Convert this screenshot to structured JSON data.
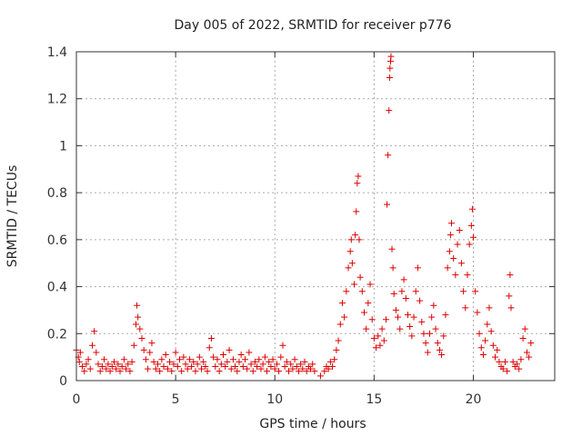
{
  "chart_data": {
    "type": "scatter",
    "title": "Day 005 of 2022, SRMTID for receiver p776",
    "xlabel": "GPS time / hours",
    "ylabel": "SRMTID / TECUs",
    "xlim": [
      0,
      24.1
    ],
    "ylim": [
      0,
      1.4
    ],
    "xticks": [
      0,
      5,
      10,
      15,
      20
    ],
    "xtick_labels": [
      "0",
      "5",
      "10",
      "15",
      "20"
    ],
    "yticks": [
      0,
      0.2,
      0.4,
      0.6,
      0.8,
      1,
      1.2,
      1.4
    ],
    "ytick_labels": [
      "0",
      "0.2",
      "0.4",
      "0.6",
      "0.8",
      "1",
      "1.2",
      "1.4"
    ],
    "grid": true,
    "marker": "+",
    "marker_color": "#dd0000",
    "series": [
      {
        "name": "SRMTID",
        "points": [
          [
            0.0,
            0.13
          ],
          [
            0.1,
            0.1
          ],
          [
            0.15,
            0.08
          ],
          [
            0.2,
            0.12
          ],
          [
            0.3,
            0.06
          ],
          [
            0.4,
            0.04
          ],
          [
            0.5,
            0.07
          ],
          [
            0.6,
            0.09
          ],
          [
            0.7,
            0.05
          ],
          [
            0.8,
            0.15
          ],
          [
            0.9,
            0.21
          ],
          [
            1.0,
            0.12
          ],
          [
            1.1,
            0.07
          ],
          [
            1.2,
            0.04
          ],
          [
            1.3,
            0.06
          ],
          [
            1.4,
            0.09
          ],
          [
            1.5,
            0.05
          ],
          [
            1.6,
            0.07
          ],
          [
            1.7,
            0.04
          ],
          [
            1.8,
            0.06
          ],
          [
            1.9,
            0.08
          ],
          [
            2.0,
            0.05
          ],
          [
            2.1,
            0.07
          ],
          [
            2.2,
            0.04
          ],
          [
            2.3,
            0.06
          ],
          [
            2.4,
            0.09
          ],
          [
            2.5,
            0.05
          ],
          [
            2.6,
            0.07
          ],
          [
            2.7,
            0.04
          ],
          [
            2.8,
            0.08
          ],
          [
            2.9,
            0.15
          ],
          [
            3.0,
            0.24
          ],
          [
            3.05,
            0.32
          ],
          [
            3.1,
            0.27
          ],
          [
            3.2,
            0.22
          ],
          [
            3.3,
            0.18
          ],
          [
            3.4,
            0.13
          ],
          [
            3.5,
            0.09
          ],
          [
            3.6,
            0.05
          ],
          [
            3.7,
            0.12
          ],
          [
            3.8,
            0.16
          ],
          [
            3.9,
            0.08
          ],
          [
            4.0,
            0.05
          ],
          [
            4.1,
            0.07
          ],
          [
            4.2,
            0.04
          ],
          [
            4.3,
            0.09
          ],
          [
            4.4,
            0.06
          ],
          [
            4.5,
            0.11
          ],
          [
            4.6,
            0.05
          ],
          [
            4.7,
            0.08
          ],
          [
            4.8,
            0.04
          ],
          [
            4.9,
            0.07
          ],
          [
            5.0,
            0.12
          ],
          [
            5.1,
            0.06
          ],
          [
            5.2,
            0.09
          ],
          [
            5.3,
            0.04
          ],
          [
            5.4,
            0.1
          ],
          [
            5.5,
            0.07
          ],
          [
            5.6,
            0.05
          ],
          [
            5.7,
            0.09
          ],
          [
            5.8,
            0.06
          ],
          [
            5.9,
            0.08
          ],
          [
            6.0,
            0.04
          ],
          [
            6.1,
            0.07
          ],
          [
            6.2,
            0.1
          ],
          [
            6.3,
            0.05
          ],
          [
            6.4,
            0.08
          ],
          [
            6.5,
            0.06
          ],
          [
            6.6,
            0.04
          ],
          [
            6.7,
            0.14
          ],
          [
            6.8,
            0.18
          ],
          [
            6.9,
            0.1
          ],
          [
            7.0,
            0.06
          ],
          [
            7.1,
            0.09
          ],
          [
            7.2,
            0.04
          ],
          [
            7.3,
            0.07
          ],
          [
            7.4,
            0.11
          ],
          [
            7.5,
            0.06
          ],
          [
            7.6,
            0.08
          ],
          [
            7.7,
            0.13
          ],
          [
            7.8,
            0.05
          ],
          [
            7.9,
            0.09
          ],
          [
            8.0,
            0.06
          ],
          [
            8.1,
            0.04
          ],
          [
            8.2,
            0.08
          ],
          [
            8.3,
            0.11
          ],
          [
            8.4,
            0.06
          ],
          [
            8.5,
            0.09
          ],
          [
            8.6,
            0.05
          ],
          [
            8.7,
            0.12
          ],
          [
            8.8,
            0.07
          ],
          [
            8.9,
            0.04
          ],
          [
            9.0,
            0.08
          ],
          [
            9.1,
            0.06
          ],
          [
            9.2,
            0.09
          ],
          [
            9.3,
            0.05
          ],
          [
            9.4,
            0.07
          ],
          [
            9.5,
            0.1
          ],
          [
            9.6,
            0.04
          ],
          [
            9.7,
            0.08
          ],
          [
            9.8,
            0.06
          ],
          [
            9.9,
            0.09
          ],
          [
            10.0,
            0.05
          ],
          [
            10.1,
            0.07
          ],
          [
            10.2,
            0.04
          ],
          [
            10.3,
            0.1
          ],
          [
            10.4,
            0.15
          ],
          [
            10.5,
            0.06
          ],
          [
            10.6,
            0.08
          ],
          [
            10.7,
            0.04
          ],
          [
            10.8,
            0.07
          ],
          [
            10.9,
            0.05
          ],
          [
            11.0,
            0.09
          ],
          [
            11.1,
            0.06
          ],
          [
            11.2,
            0.04
          ],
          [
            11.3,
            0.07
          ],
          [
            11.4,
            0.05
          ],
          [
            11.5,
            0.08
          ],
          [
            11.6,
            0.04
          ],
          [
            11.7,
            0.06
          ],
          [
            11.8,
            0.05
          ],
          [
            11.9,
            0.07
          ],
          [
            12.0,
            0.04
          ],
          [
            12.3,
            0.02
          ],
          [
            12.5,
            0.04
          ],
          [
            12.6,
            0.06
          ],
          [
            12.7,
            0.05
          ],
          [
            12.8,
            0.08
          ],
          [
            12.9,
            0.06
          ],
          [
            13.0,
            0.09
          ],
          [
            13.1,
            0.13
          ],
          [
            13.2,
            0.17
          ],
          [
            13.3,
            0.24
          ],
          [
            13.4,
            0.33
          ],
          [
            13.5,
            0.27
          ],
          [
            13.6,
            0.38
          ],
          [
            13.7,
            0.48
          ],
          [
            13.8,
            0.55
          ],
          [
            13.85,
            0.6
          ],
          [
            13.9,
            0.5
          ],
          [
            14.0,
            0.41
          ],
          [
            14.05,
            0.62
          ],
          [
            14.1,
            0.72
          ],
          [
            14.15,
            0.84
          ],
          [
            14.2,
            0.87
          ],
          [
            14.25,
            0.6
          ],
          [
            14.3,
            0.44
          ],
          [
            14.4,
            0.38
          ],
          [
            14.5,
            0.29
          ],
          [
            14.6,
            0.22
          ],
          [
            14.7,
            0.33
          ],
          [
            14.8,
            0.41
          ],
          [
            14.9,
            0.26
          ],
          [
            15.0,
            0.18
          ],
          [
            15.1,
            0.14
          ],
          [
            15.2,
            0.19
          ],
          [
            15.3,
            0.15
          ],
          [
            15.4,
            0.22
          ],
          [
            15.5,
            0.17
          ],
          [
            15.6,
            0.26
          ],
          [
            15.65,
            0.75
          ],
          [
            15.7,
            0.96
          ],
          [
            15.75,
            1.15
          ],
          [
            15.78,
            1.29
          ],
          [
            15.8,
            1.33
          ],
          [
            15.83,
            1.36
          ],
          [
            15.85,
            1.38
          ],
          [
            15.9,
            0.56
          ],
          [
            15.95,
            0.48
          ],
          [
            16.0,
            0.37
          ],
          [
            16.1,
            0.3
          ],
          [
            16.2,
            0.27
          ],
          [
            16.3,
            0.22
          ],
          [
            16.4,
            0.38
          ],
          [
            16.5,
            0.43
          ],
          [
            16.6,
            0.35
          ],
          [
            16.7,
            0.28
          ],
          [
            16.8,
            0.23
          ],
          [
            16.9,
            0.19
          ],
          [
            17.0,
            0.27
          ],
          [
            17.1,
            0.38
          ],
          [
            17.2,
            0.48
          ],
          [
            17.3,
            0.34
          ],
          [
            17.4,
            0.25
          ],
          [
            17.5,
            0.2
          ],
          [
            17.6,
            0.16
          ],
          [
            17.7,
            0.12
          ],
          [
            17.8,
            0.2
          ],
          [
            17.9,
            0.27
          ],
          [
            18.0,
            0.32
          ],
          [
            18.1,
            0.22
          ],
          [
            18.2,
            0.16
          ],
          [
            18.3,
            0.13
          ],
          [
            18.4,
            0.11
          ],
          [
            18.5,
            0.19
          ],
          [
            18.6,
            0.28
          ],
          [
            18.7,
            0.48
          ],
          [
            18.8,
            0.55
          ],
          [
            18.85,
            0.62
          ],
          [
            18.9,
            0.67
          ],
          [
            19.0,
            0.52
          ],
          [
            19.1,
            0.45
          ],
          [
            19.2,
            0.58
          ],
          [
            19.3,
            0.64
          ],
          [
            19.4,
            0.5
          ],
          [
            19.5,
            0.38
          ],
          [
            19.6,
            0.31
          ],
          [
            19.7,
            0.45
          ],
          [
            19.8,
            0.58
          ],
          [
            19.9,
            0.66
          ],
          [
            19.95,
            0.73
          ],
          [
            20.0,
            0.61
          ],
          [
            20.1,
            0.38
          ],
          [
            20.2,
            0.29
          ],
          [
            20.3,
            0.2
          ],
          [
            20.4,
            0.14
          ],
          [
            20.5,
            0.11
          ],
          [
            20.6,
            0.17
          ],
          [
            20.7,
            0.24
          ],
          [
            20.8,
            0.31
          ],
          [
            20.9,
            0.21
          ],
          [
            21.0,
            0.15
          ],
          [
            21.1,
            0.1
          ],
          [
            21.2,
            0.13
          ],
          [
            21.3,
            0.08
          ],
          [
            21.4,
            0.06
          ],
          [
            21.5,
            0.05
          ],
          [
            21.6,
            0.08
          ],
          [
            21.7,
            0.04
          ],
          [
            21.8,
            0.36
          ],
          [
            21.85,
            0.45
          ],
          [
            21.9,
            0.31
          ],
          [
            22.0,
            0.08
          ],
          [
            22.1,
            0.06
          ],
          [
            22.2,
            0.07
          ],
          [
            22.3,
            0.05
          ],
          [
            22.4,
            0.09
          ],
          [
            22.5,
            0.18
          ],
          [
            22.6,
            0.22
          ],
          [
            22.7,
            0.12
          ],
          [
            22.8,
            0.1
          ],
          [
            22.9,
            0.16
          ]
        ]
      }
    ]
  }
}
